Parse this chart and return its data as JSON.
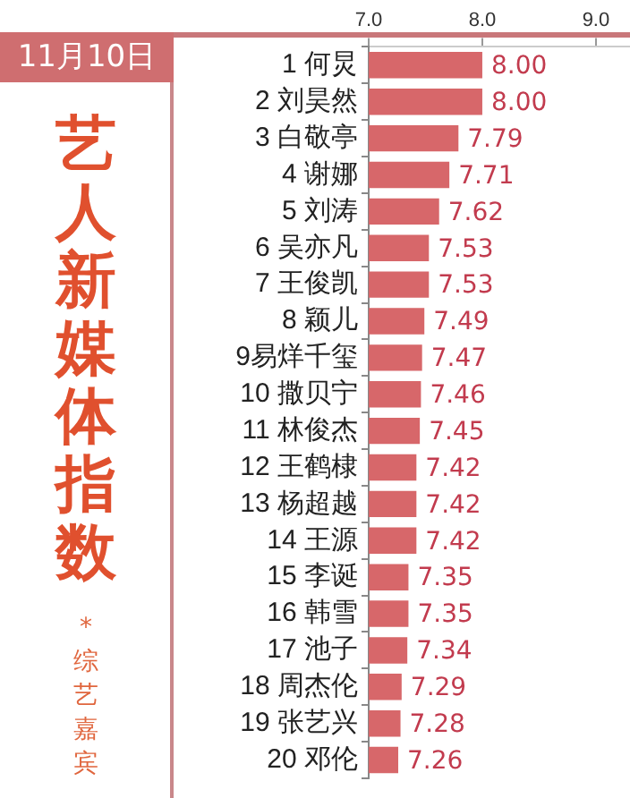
{
  "chart_data": {
    "type": "bar",
    "orientation": "horizontal",
    "title": "艺人新媒体指数",
    "subtitle": "* 综艺嘉宾",
    "annotations": [
      "11月10日"
    ],
    "categories": [
      "1 何炅",
      "2 刘昊然",
      "3 白敬亭",
      "4 谢娜",
      "5 刘涛",
      "6 吴亦凡",
      "7 王俊凯",
      "8 颖儿",
      "9易烊千玺",
      "10 撒贝宁",
      "11 林俊杰",
      "12 王鹤棣",
      "13 杨超越",
      "14 王源",
      "15 李诞",
      "16 韩雪",
      "17 池子",
      "18 周杰伦",
      "19 张艺兴",
      "20 邓伦"
    ],
    "values": [
      8.0,
      8.0,
      7.79,
      7.71,
      7.62,
      7.53,
      7.53,
      7.49,
      7.47,
      7.46,
      7.45,
      7.42,
      7.42,
      7.42,
      7.35,
      7.35,
      7.34,
      7.29,
      7.28,
      7.26
    ],
    "color": "#d7676a",
    "xlim": [
      7.0,
      9.3
    ],
    "xticks": [
      {
        "value": 7,
        "label": "7.0"
      },
      {
        "value": 8,
        "label": "8.0"
      },
      {
        "value": 9,
        "label": "9.0"
      }
    ],
    "value_labels": [
      "8.00",
      "8.00",
      "7.79",
      "7.71",
      "7.62",
      "7.53",
      "7.53",
      "7.49",
      "7.47",
      "7.46",
      "7.45",
      "7.42",
      "7.42",
      "7.42",
      "7.35",
      "7.35",
      "7.34",
      "7.29",
      "7.28",
      "7.26"
    ],
    "grid": false,
    "legend": false
  }
}
